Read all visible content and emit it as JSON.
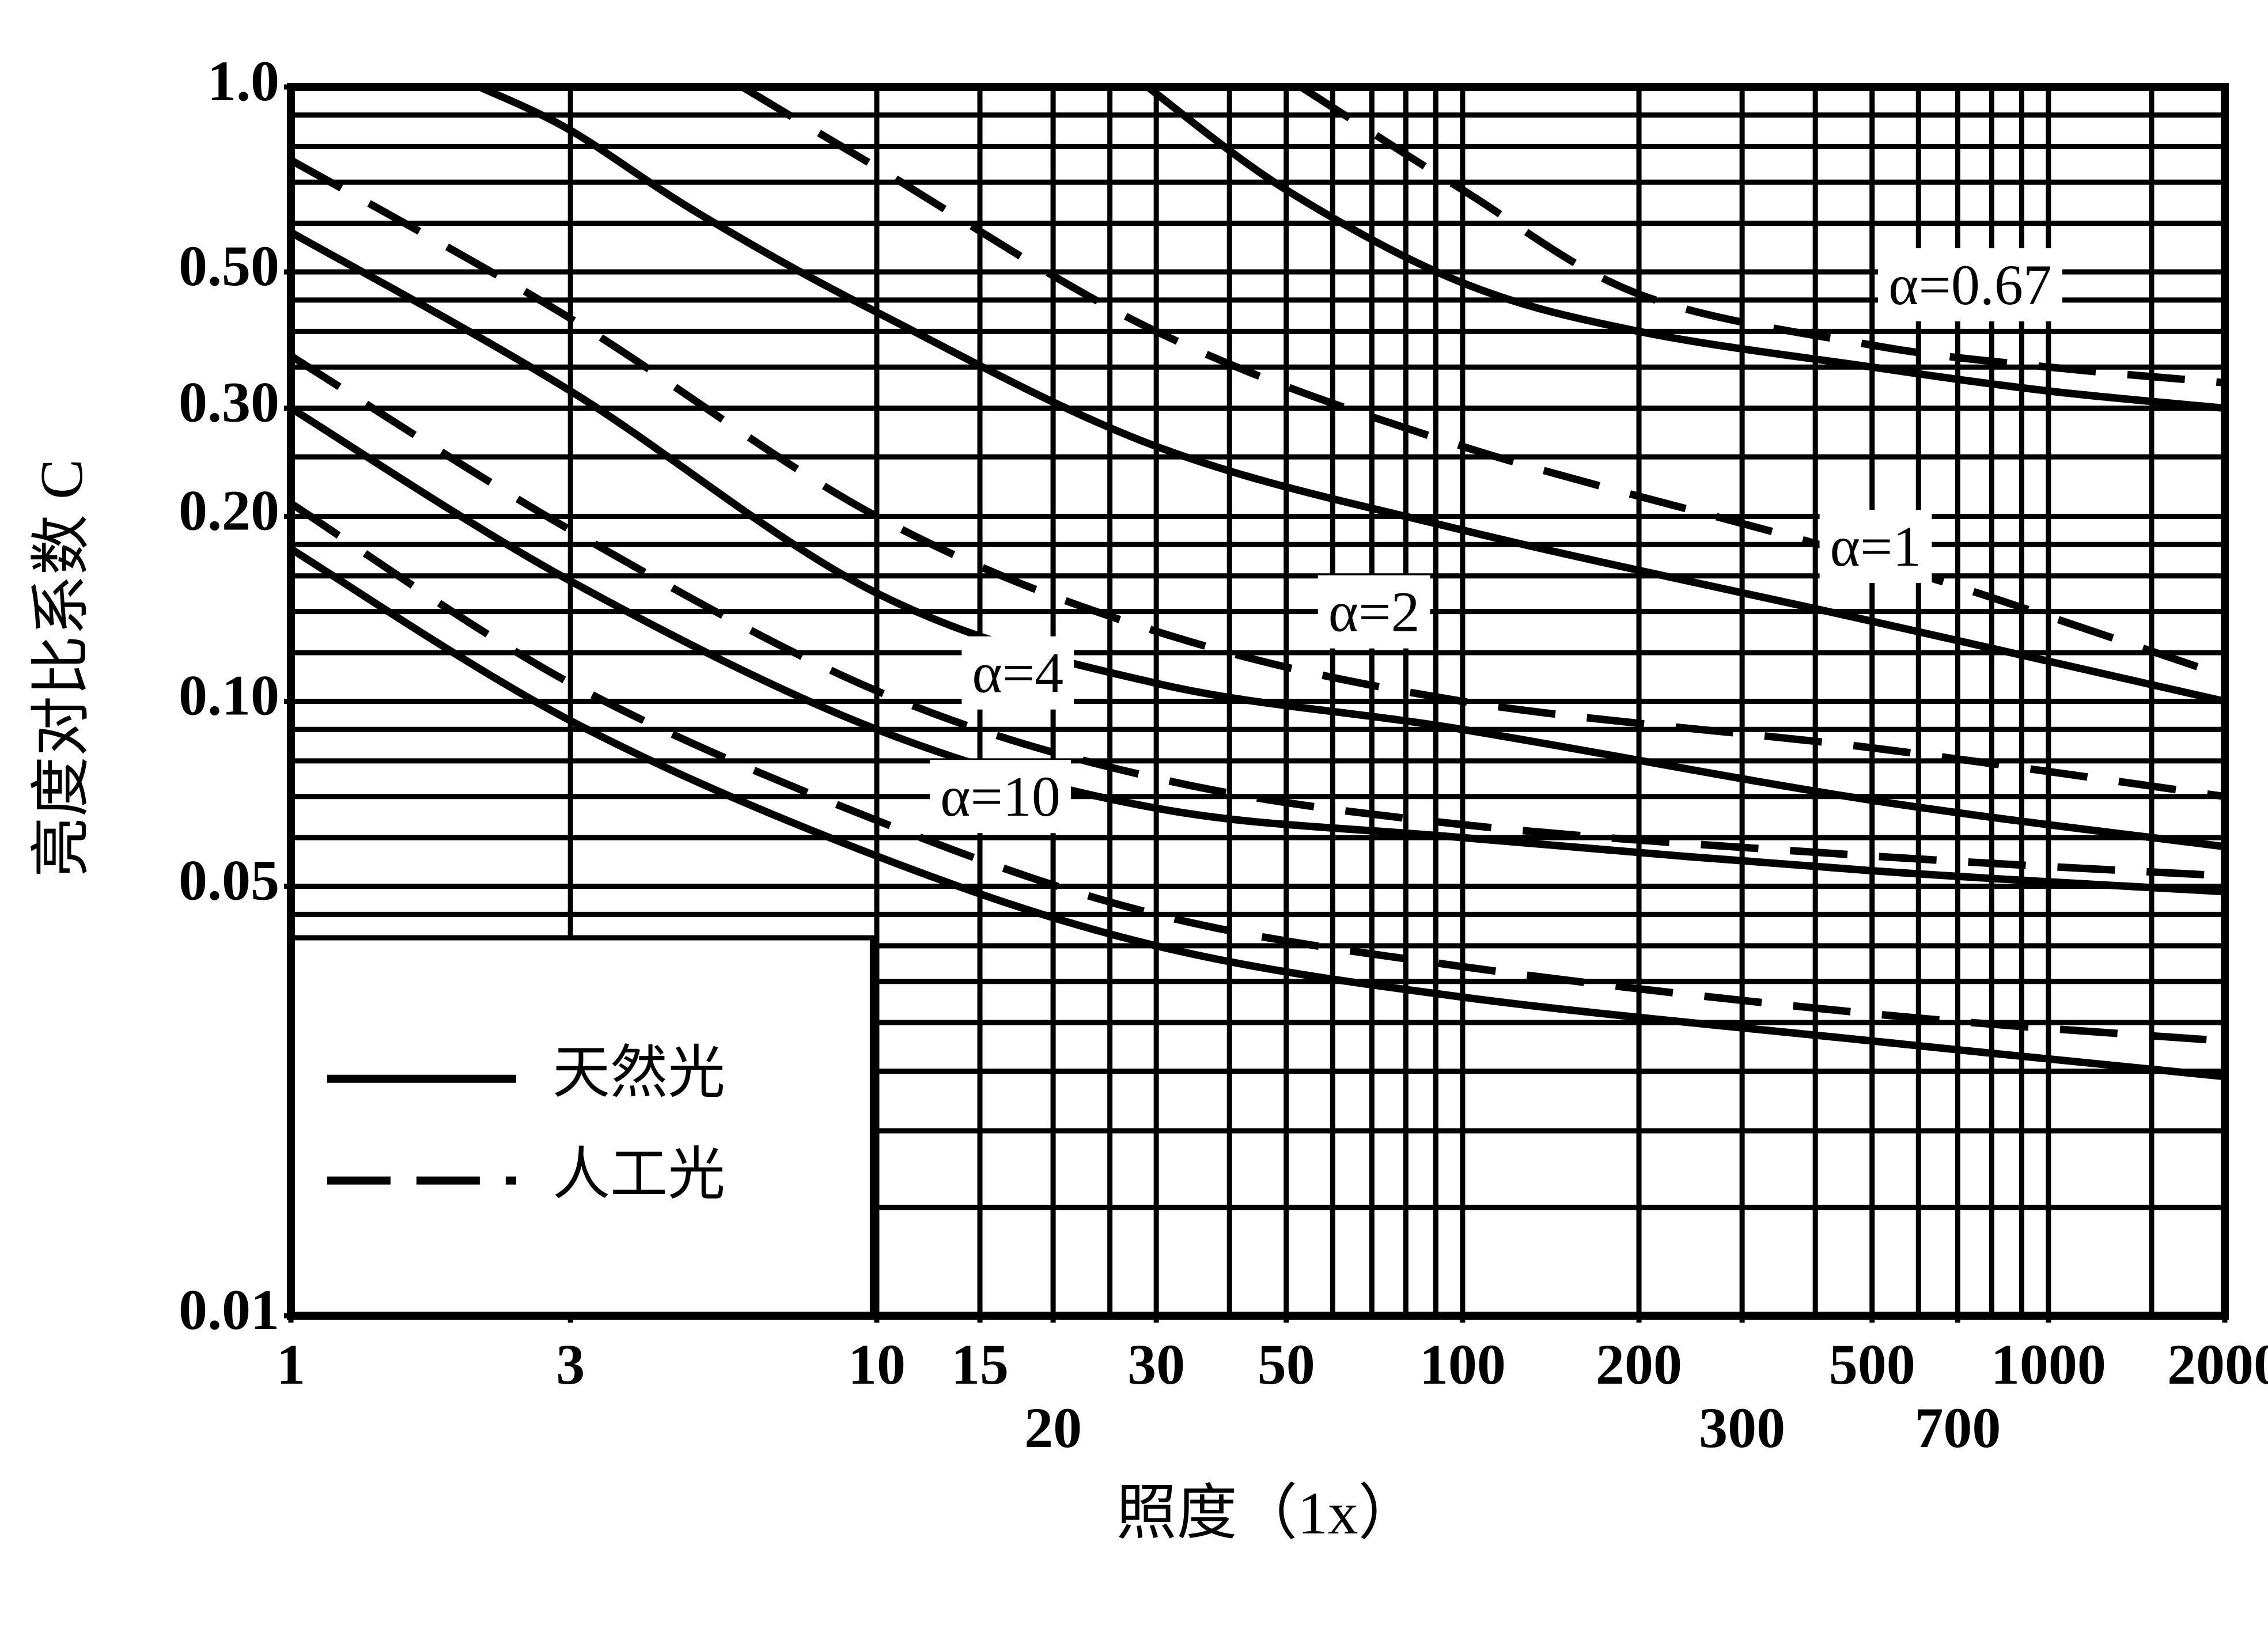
{
  "chart_data": {
    "type": "line",
    "x_label": "照度（1x）",
    "y_label": "亮度对比系数 C",
    "xscale": "log",
    "yscale": "log",
    "xlim": [
      1,
      2000
    ],
    "ylim": [
      0.01,
      1.0
    ],
    "xticks": [
      1,
      3,
      10,
      15,
      20,
      30,
      50,
      100,
      200,
      300,
      500,
      700,
      1000,
      2000
    ],
    "yticks": [
      {
        "value": 1.0,
        "label": "1.0"
      },
      {
        "value": 0.5,
        "label": "0.50"
      },
      {
        "value": 0.3,
        "label": "0.30"
      },
      {
        "value": 0.2,
        "label": "0.20"
      },
      {
        "value": 0.1,
        "label": "0.10"
      },
      0.05,
      0.01
    ],
    "grid": true,
    "xgrid": [
      1,
      3,
      10,
      15,
      20,
      25,
      30,
      40,
      50,
      60,
      70,
      80,
      90,
      100,
      200,
      300,
      400,
      500,
      600,
      700,
      800,
      900,
      1000,
      1500,
      2000
    ],
    "ygrid": [
      1.0,
      0.9,
      0.8,
      0.7,
      0.6,
      0.5,
      0.45,
      0.4,
      0.35,
      0.3,
      0.25,
      0.2,
      0.18,
      0.16,
      0.14,
      0.12,
      0.1,
      0.09,
      0.08,
      0.07,
      0.06,
      0.05,
      0.045,
      0.04,
      0.035,
      0.03,
      0.025,
      0.02,
      0.015
    ],
    "color": "#000000",
    "legend_position": "lower left",
    "legend": [
      {
        "name": "天然光",
        "dash": false
      },
      {
        "name": "人工光",
        "dash": true
      }
    ],
    "curves": [
      {
        "label": "α=0.67",
        "lines": [
          {
            "x": [
              29,
              50,
              100,
              200,
              500,
              1000,
              2000
            ],
            "y": [
              1.0,
              0.68,
              0.48,
              0.4,
              0.35,
              0.32,
              0.3
            ]
          },
          {
            "x": [
              53,
              100,
              200,
              500,
              1000,
              2000
            ],
            "y": [
              1.0,
              0.68,
              0.46,
              0.38,
              0.35,
              0.33
            ]
          }
        ]
      },
      {
        "label": "α=1",
        "lines": [
          {
            "x": [
              2.1,
              3,
              5,
              10,
              30,
              100,
              500,
              2000
            ],
            "y": [
              1.0,
              0.85,
              0.62,
              0.43,
              0.26,
              0.19,
              0.135,
              0.1
            ]
          },
          {
            "x": [
              5.9,
              10,
              30,
              100,
              500,
              2000
            ],
            "y": [
              1.0,
              0.74,
              0.4,
              0.26,
              0.17,
              0.11
            ]
          }
        ]
      },
      {
        "label": "α=2",
        "lines": [
          {
            "x": [
              1,
              3,
              10,
              30,
              100,
              500,
              2000
            ],
            "y": [
              0.58,
              0.32,
              0.15,
              0.107,
              0.09,
              0.069,
              0.058
            ]
          },
          {
            "x": [
              1,
              3,
              10,
              30,
              100,
              500,
              2000
            ],
            "y": [
              0.76,
              0.42,
              0.2,
              0.13,
              0.1,
              0.084,
              0.07
            ]
          }
        ]
      },
      {
        "label": "α=4",
        "lines": [
          {
            "x": [
              1,
              3,
              10,
              30,
              100,
              500,
              2000
            ],
            "y": [
              0.3,
              0.157,
              0.09,
              0.067,
              0.06,
              0.053,
              0.049
            ]
          },
          {
            "x": [
              1,
              3,
              10,
              30,
              100,
              500,
              2000
            ],
            "y": [
              0.365,
              0.19,
              0.104,
              0.075,
              0.063,
              0.056,
              0.052
            ]
          }
        ]
      },
      {
        "label": "α=10",
        "lines": [
          {
            "x": [
              1,
              3,
              10,
              30,
              100,
              500,
              2000
            ],
            "y": [
              0.177,
              0.093,
              0.056,
              0.04,
              0.033,
              0.028,
              0.0245
            ]
          },
          {
            "x": [
              1,
              3,
              10,
              30,
              100,
              500,
              2000
            ],
            "y": [
              0.21,
              0.107,
              0.064,
              0.045,
              0.037,
              0.031,
              0.028
            ]
          }
        ]
      }
    ]
  }
}
